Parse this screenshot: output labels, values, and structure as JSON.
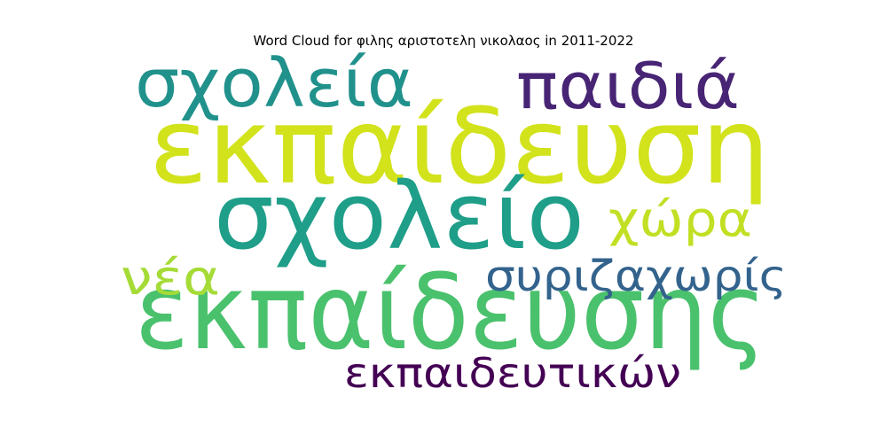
{
  "title": "Word Cloud for φιλης αριστοτελη νικολαος in 2011-2022",
  "words": [
    {
      "text": "εκπαίδευση",
      "color": "#d2e21b"
    },
    {
      "text": "εκπαίδευσης",
      "color": "#4ac16d"
    },
    {
      "text": "σχολείο",
      "color": "#1f9e89"
    },
    {
      "text": "σχολεία",
      "color": "#21918c"
    },
    {
      "text": "παιδιά",
      "color": "#482475"
    },
    {
      "text": "χώρα",
      "color": "#c2df23"
    },
    {
      "text": "συριζαχωρίς",
      "color": "#33638d"
    },
    {
      "text": "νέα",
      "color": "#a5db36"
    },
    {
      "text": "εκπαιδευτικών",
      "color": "#440154"
    }
  ]
}
